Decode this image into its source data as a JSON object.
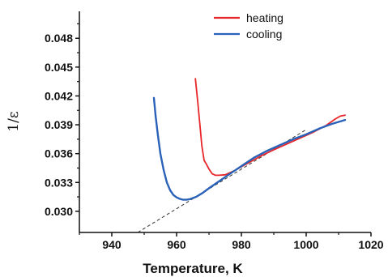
{
  "chart_data": {
    "type": "line",
    "title": "",
    "xlabel": "Temperature, K",
    "ylabel": "1/ε",
    "xlim": [
      930,
      1020
    ],
    "ylim": [
      0.0278,
      0.0508
    ],
    "xticks": [
      940,
      960,
      980,
      1000,
      1020
    ],
    "yticks": [
      0.03,
      0.033,
      0.036,
      0.039,
      0.042,
      0.045,
      0.048
    ],
    "ytick_labels": [
      "0.030",
      "0.033",
      "0.036",
      "0.039",
      "0.042",
      "0.045",
      "0.048"
    ],
    "grid": false,
    "legend_position": "top-center",
    "series": [
      {
        "name": "heating",
        "color": "#e8262a",
        "x": [
          965.8,
          966.5,
          967.2,
          967.8,
          968.5,
          969.2,
          970,
          971,
          972,
          973,
          975,
          978,
          982,
          986,
          990,
          994,
          998,
          1002,
          1006,
          1009,
          1010.5,
          1012
        ],
        "y": [
          0.0438,
          0.0415,
          0.039,
          0.0368,
          0.0353,
          0.0349,
          0.0344,
          0.0339,
          0.03375,
          0.03375,
          0.0338,
          0.03425,
          0.035,
          0.03575,
          0.0364,
          0.037,
          0.0376,
          0.0382,
          0.0389,
          0.0396,
          0.0399,
          0.04
        ]
      },
      {
        "name": "cooling",
        "color": "#2962b8",
        "x": [
          953,
          953.5,
          954.2,
          955,
          956,
          957,
          958,
          959,
          960,
          961,
          962,
          963,
          964,
          966,
          968,
          970,
          973,
          976,
          980,
          984,
          988,
          992,
          996,
          1000,
          1004,
          1008,
          1012
        ],
        "y": [
          0.0418,
          0.04,
          0.038,
          0.036,
          0.0343,
          0.033,
          0.0322,
          0.0317,
          0.03145,
          0.0313,
          0.0312,
          0.0312,
          0.03125,
          0.0315,
          0.0319,
          0.0324,
          0.0331,
          0.0338,
          0.0347,
          0.0356,
          0.0363,
          0.0369,
          0.0375,
          0.038,
          0.0386,
          0.0391,
          0.0395
        ]
      }
    ],
    "reference_line": {
      "style": "dashed",
      "color": "#333333",
      "x": [
        948,
        1000
      ],
      "y": [
        0.0278,
        0.0385
      ]
    }
  }
}
